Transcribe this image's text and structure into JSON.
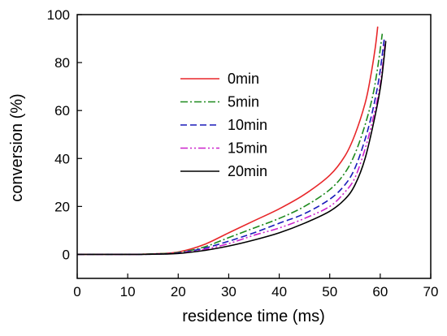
{
  "chart_data": {
    "type": "line",
    "title": "",
    "xlabel": "residence time (ms)",
    "ylabel": "conversion (%)",
    "xlim": [
      0,
      70
    ],
    "ylim": [
      -10,
      100
    ],
    "xticks": [
      0,
      10,
      20,
      30,
      40,
      50,
      60,
      70
    ],
    "yticks": [
      0,
      20,
      40,
      60,
      80,
      100
    ],
    "grid": false,
    "legend_position": "upper-left-inside",
    "series": [
      {
        "name": "0min",
        "color": "#e8272a",
        "dash": "solid",
        "x": [
          0,
          10,
          15,
          20,
          25,
          30,
          35,
          40,
          45,
          50,
          53,
          55,
          57,
          58,
          59,
          59.5
        ],
        "y": [
          0,
          0,
          0.2,
          1,
          4,
          9,
          14,
          19,
          25,
          33,
          41,
          50,
          63,
          73,
          86,
          95
        ]
      },
      {
        "name": "5min",
        "color": "#1d8a1d",
        "dash": "dashdot",
        "x": [
          0,
          10,
          15,
          20,
          25,
          30,
          35,
          40,
          45,
          50,
          53,
          55,
          57,
          58.5,
          59.5,
          60.4
        ],
        "y": [
          0,
          0,
          0.2,
          0.8,
          3,
          7,
          11,
          15,
          20,
          27,
          34,
          42,
          54,
          66,
          78,
          92
        ]
      },
      {
        "name": "10min",
        "color": "#1a1aba",
        "dash": "dash",
        "x": [
          0,
          10,
          15,
          20,
          25,
          30,
          35,
          40,
          45,
          50,
          53,
          55,
          57,
          58.5,
          59.8,
          60.8
        ],
        "y": [
          0,
          0,
          0.1,
          0.6,
          2.5,
          5.5,
          9,
          13,
          17,
          23,
          29,
          36,
          48,
          60,
          74,
          90
        ]
      },
      {
        "name": "15min",
        "color": "#cc22cc",
        "dash": "dashdotdot",
        "x": [
          0,
          10,
          15,
          20,
          25,
          30,
          35,
          40,
          45,
          50,
          53,
          55,
          57,
          58.5,
          60,
          61
        ],
        "y": [
          0,
          0,
          0.1,
          0.5,
          2,
          4.5,
          8,
          11,
          15,
          20,
          26,
          32,
          44,
          56,
          71,
          89
        ]
      },
      {
        "name": "20min",
        "color": "#000000",
        "dash": "solid",
        "x": [
          0,
          10,
          15,
          20,
          25,
          30,
          35,
          40,
          45,
          50,
          53,
          55,
          57,
          59,
          60.2,
          61.1
        ],
        "y": [
          0,
          0,
          0.1,
          0.4,
          1.6,
          3.5,
          6,
          9,
          13,
          18,
          23,
          29,
          40,
          58,
          72,
          89
        ]
      }
    ]
  }
}
